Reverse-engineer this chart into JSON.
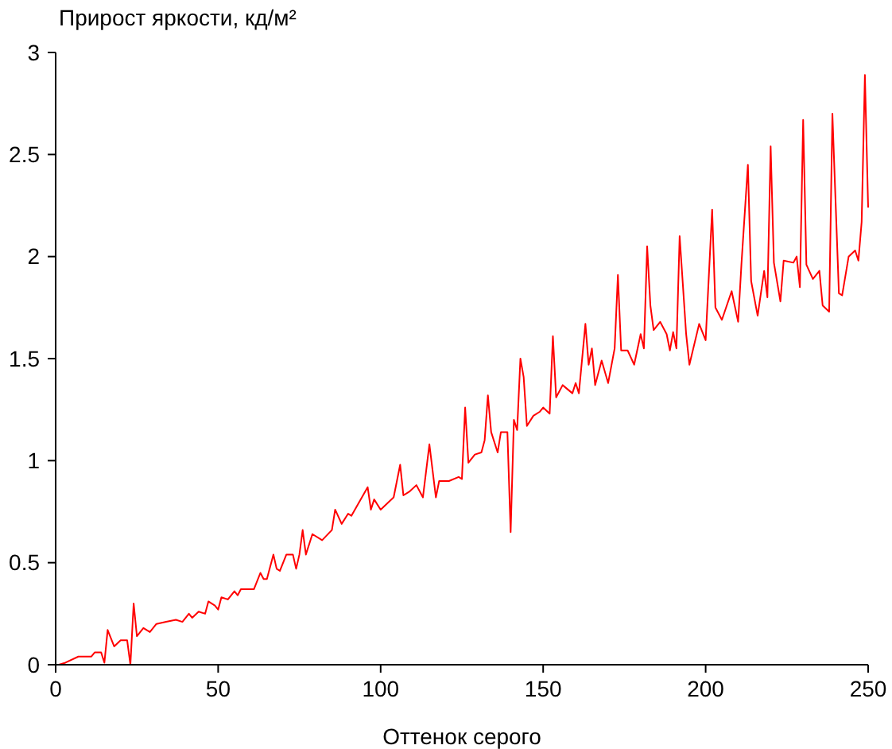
{
  "chart_data": {
    "type": "line",
    "xlabel": "Оттенок серого",
    "ylabel": "Прирост яркости, кд/м²",
    "xlim": [
      0,
      250
    ],
    "xticks": [
      0,
      50,
      100,
      150,
      200,
      250
    ],
    "ylim": [
      0,
      3
    ],
    "yticks": [
      0,
      0.5,
      1,
      1.5,
      2,
      2.5,
      3
    ],
    "grid": false,
    "marker": "none",
    "line_style": "solid",
    "series": [
      {
        "color": "#ff0000",
        "x": [
          1,
          3,
          7,
          11,
          12,
          14,
          15,
          16,
          18,
          20,
          22,
          23,
          24,
          25,
          27,
          29,
          31,
          34,
          37,
          39,
          41,
          42,
          44,
          46,
          47,
          49,
          50,
          51,
          53,
          55,
          56,
          57,
          59,
          61,
          63,
          64,
          65,
          67,
          68,
          69,
          71,
          73,
          74,
          75,
          76,
          77,
          79,
          82,
          85,
          86,
          88,
          90,
          91,
          96,
          97,
          98,
          100,
          102,
          104,
          106,
          107,
          109,
          111,
          113,
          115,
          117,
          118,
          121,
          124,
          125,
          126,
          127,
          129,
          131,
          132,
          133,
          134,
          136,
          137,
          139,
          140,
          141,
          142,
          143,
          144,
          145,
          147,
          149,
          150,
          152,
          153,
          154,
          156,
          159,
          160,
          161,
          163,
          164,
          165,
          166,
          168,
          170,
          172,
          173,
          174,
          176,
          178,
          180,
          181,
          182,
          183,
          184,
          186,
          188,
          189,
          190,
          191,
          192,
          194,
          195,
          198,
          200,
          202,
          203,
          205,
          208,
          210,
          211,
          213,
          214,
          216,
          218,
          219,
          220,
          221,
          223,
          224,
          227,
          228,
          229,
          230,
          231,
          233,
          235,
          236,
          238,
          239,
          241,
          242,
          244,
          246,
          247,
          248,
          249,
          250
        ],
        "values": [
          0,
          0.01,
          0.04,
          0.04,
          0.06,
          0.06,
          0.01,
          0.17,
          0.09,
          0.12,
          0.12,
          0,
          0.3,
          0.14,
          0.18,
          0.16,
          0.2,
          0.21,
          0.22,
          0.21,
          0.25,
          0.23,
          0.26,
          0.25,
          0.31,
          0.29,
          0.27,
          0.33,
          0.32,
          0.36,
          0.34,
          0.37,
          0.37,
          0.37,
          0.45,
          0.42,
          0.42,
          0.54,
          0.47,
          0.46,
          0.54,
          0.54,
          0.47,
          0.54,
          0.66,
          0.54,
          0.64,
          0.61,
          0.66,
          0.76,
          0.69,
          0.74,
          0.73,
          0.87,
          0.76,
          0.81,
          0.76,
          0.79,
          0.82,
          0.98,
          0.83,
          0.85,
          0.88,
          0.82,
          1.08,
          0.82,
          0.9,
          0.9,
          0.92,
          0.91,
          1.26,
          0.99,
          1.03,
          1.04,
          1.1,
          1.32,
          1.14,
          1.04,
          1.14,
          1.14,
          0.65,
          1.2,
          1.15,
          1.5,
          1.41,
          1.17,
          1.22,
          1.24,
          1.26,
          1.23,
          1.61,
          1.31,
          1.37,
          1.33,
          1.38,
          1.33,
          1.67,
          1.47,
          1.55,
          1.37,
          1.49,
          1.38,
          1.55,
          1.91,
          1.54,
          1.54,
          1.47,
          1.62,
          1.55,
          2.05,
          1.76,
          1.64,
          1.68,
          1.62,
          1.54,
          1.63,
          1.55,
          2.1,
          1.62,
          1.47,
          1.67,
          1.59,
          2.23,
          1.75,
          1.69,
          1.83,
          1.68,
          1.96,
          2.45,
          1.88,
          1.71,
          1.93,
          1.8,
          2.54,
          1.97,
          1.78,
          1.98,
          1.97,
          2,
          1.85,
          2.67,
          1.96,
          1.89,
          1.93,
          1.76,
          1.73,
          2.7,
          1.82,
          1.81,
          2,
          2.03,
          1.98,
          2.17,
          2.89,
          2.24
        ]
      }
    ]
  }
}
